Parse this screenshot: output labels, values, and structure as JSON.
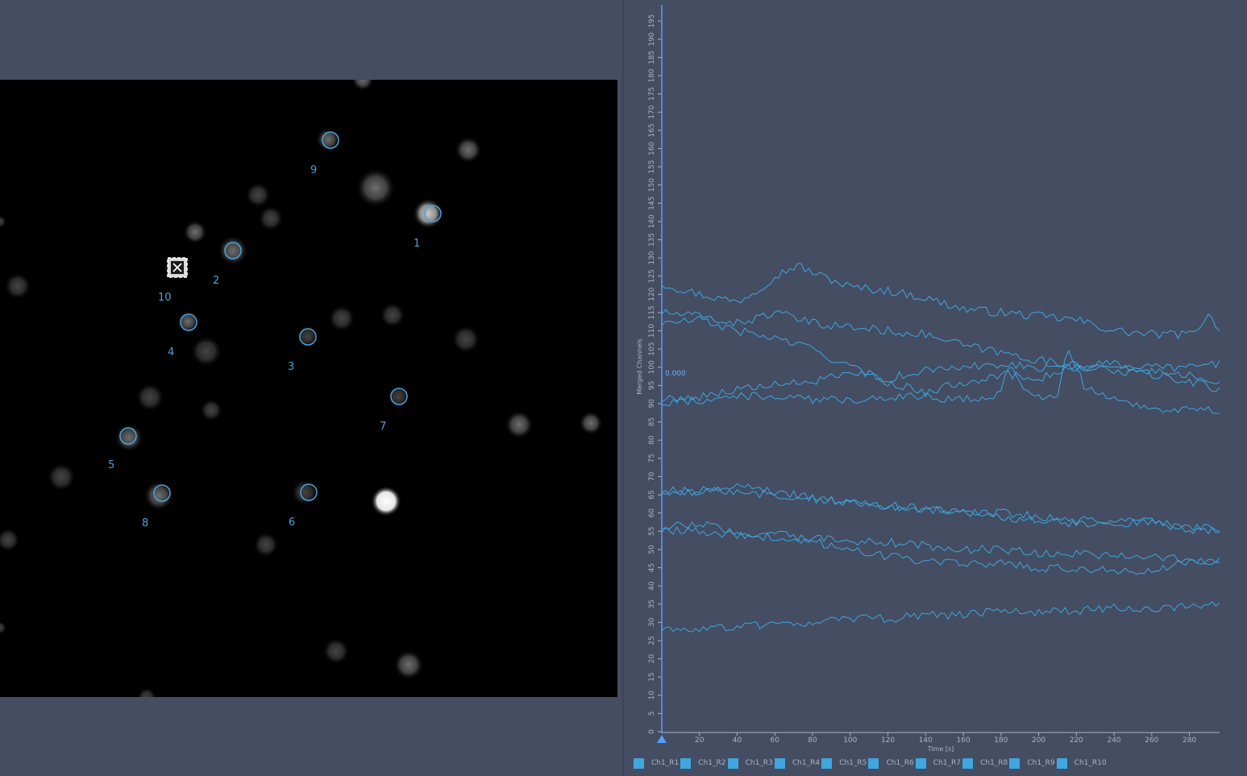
{
  "viewer": {
    "rois": [
      {
        "label": "1"
      },
      {
        "label": "2"
      },
      {
        "label": "3"
      },
      {
        "label": "4"
      },
      {
        "label": "5"
      },
      {
        "label": "6"
      },
      {
        "label": "7"
      },
      {
        "label": "8"
      },
      {
        "label": "9"
      },
      {
        "label": "10"
      }
    ],
    "roi_color": "#4aa3dc"
  },
  "chart_data": {
    "type": "line",
    "title": "",
    "xlabel": "Time [s]",
    "ylabel": "Merged Channels",
    "xlim": [
      0,
      296
    ],
    "ylim": [
      0,
      199
    ],
    "x_ticks": [
      20,
      40,
      60,
      80,
      100,
      120,
      140,
      160,
      180,
      200,
      220,
      240,
      260,
      280
    ],
    "y_ticks": [
      0,
      5,
      10,
      15,
      20,
      25,
      30,
      35,
      40,
      45,
      50,
      55,
      60,
      65,
      70,
      75,
      80,
      85,
      90,
      95,
      100,
      105,
      110,
      115,
      120,
      125,
      130,
      135,
      140,
      145,
      150,
      155,
      160,
      165,
      170,
      175,
      180,
      185,
      190,
      195
    ],
    "grid": false,
    "legend_position": "bottom",
    "cursor": {
      "x": 0,
      "label": "0.000"
    },
    "line_color": "#3fa6e0",
    "series": [
      {
        "name": "Ch1_R1",
        "x": [
          0,
          20,
          40,
          50,
          60,
          72,
          80,
          100,
          120,
          140,
          160,
          180,
          200,
          220,
          240,
          260,
          280,
          290,
          296
        ],
        "values": [
          123,
          120,
          118,
          121,
          125,
          128,
          126,
          122,
          121,
          119,
          116,
          115,
          114,
          113,
          110,
          109,
          109,
          114,
          111
        ]
      },
      {
        "name": "Ch1_R2",
        "x": [
          0,
          20,
          40,
          60,
          80,
          100,
          120,
          140,
          160,
          180,
          200,
          220,
          240,
          260,
          280,
          296
        ],
        "values": [
          115,
          114,
          112,
          115,
          112,
          111,
          110,
          109,
          106,
          104,
          102,
          100,
          101,
          100,
          100,
          101
        ]
      },
      {
        "name": "Ch1_R3",
        "x": [
          0,
          20,
          40,
          60,
          80,
          100,
          120,
          140,
          160,
          180,
          200,
          220,
          240,
          260,
          280,
          296
        ],
        "values": [
          112,
          113,
          110,
          108,
          105,
          100,
          96,
          93,
          96,
          98,
          97,
          100,
          99,
          98,
          96,
          94
        ]
      },
      {
        "name": "Ch1_R4",
        "x": [
          0,
          20,
          40,
          60,
          80,
          100,
          120,
          140,
          160,
          180,
          200,
          220,
          240,
          260,
          280,
          296
        ],
        "values": [
          91,
          92,
          94,
          95,
          96,
          98,
          97,
          99,
          100,
          101,
          100,
          101,
          100,
          99,
          98,
          96
        ]
      },
      {
        "name": "Ch1_R5",
        "x": [
          0,
          20,
          40,
          60,
          80,
          100,
          120,
          140,
          160,
          178,
          185,
          195,
          210,
          215,
          225,
          240,
          260,
          280,
          296
        ],
        "values": [
          90,
          91,
          92,
          92,
          91,
          91,
          92,
          92,
          91,
          92,
          101,
          92,
          92,
          106,
          94,
          91,
          89,
          88,
          88
        ]
      },
      {
        "name": "Ch1_R6",
        "x": [
          0,
          20,
          40,
          60,
          80,
          100,
          120,
          140,
          160,
          180,
          200,
          220,
          240,
          260,
          280,
          296
        ],
        "values": [
          66,
          66,
          66,
          65,
          64,
          63,
          62,
          61,
          60,
          60,
          59,
          58,
          58,
          57,
          56,
          56
        ]
      },
      {
        "name": "Ch1_R7",
        "x": [
          0,
          20,
          40,
          60,
          80,
          100,
          120,
          140,
          160,
          180,
          200,
          220,
          240,
          260,
          280,
          296
        ],
        "values": [
          55,
          55,
          54,
          54,
          53,
          52,
          52,
          51,
          50,
          50,
          49,
          49,
          48,
          48,
          47,
          47
        ]
      },
      {
        "name": "Ch1_R8",
        "x": [
          0,
          20,
          40,
          60,
          80,
          100,
          120,
          140,
          160,
          180,
          200,
          220,
          240,
          260,
          280,
          290,
          296
        ],
        "values": [
          28,
          28,
          29,
          29,
          30,
          31,
          31,
          32,
          32,
          33,
          33,
          33,
          34,
          34,
          34,
          35,
          35
        ]
      },
      {
        "name": "Ch1_R9",
        "x": [
          0,
          20,
          40,
          60,
          80,
          100,
          120,
          140,
          160,
          180,
          200,
          220,
          240,
          260,
          280,
          296
        ],
        "values": [
          66,
          66,
          67,
          66,
          64,
          63,
          62,
          61,
          60,
          59,
          58,
          57,
          57,
          58,
          55,
          55
        ]
      },
      {
        "name": "Ch1_R10",
        "x": [
          0,
          20,
          40,
          60,
          80,
          100,
          120,
          140,
          160,
          180,
          200,
          220,
          240,
          260,
          280,
          296
        ],
        "values": [
          56,
          57,
          55,
          53,
          52,
          50,
          48,
          47,
          46,
          46,
          45,
          45,
          44,
          44,
          47,
          47
        ]
      }
    ]
  }
}
